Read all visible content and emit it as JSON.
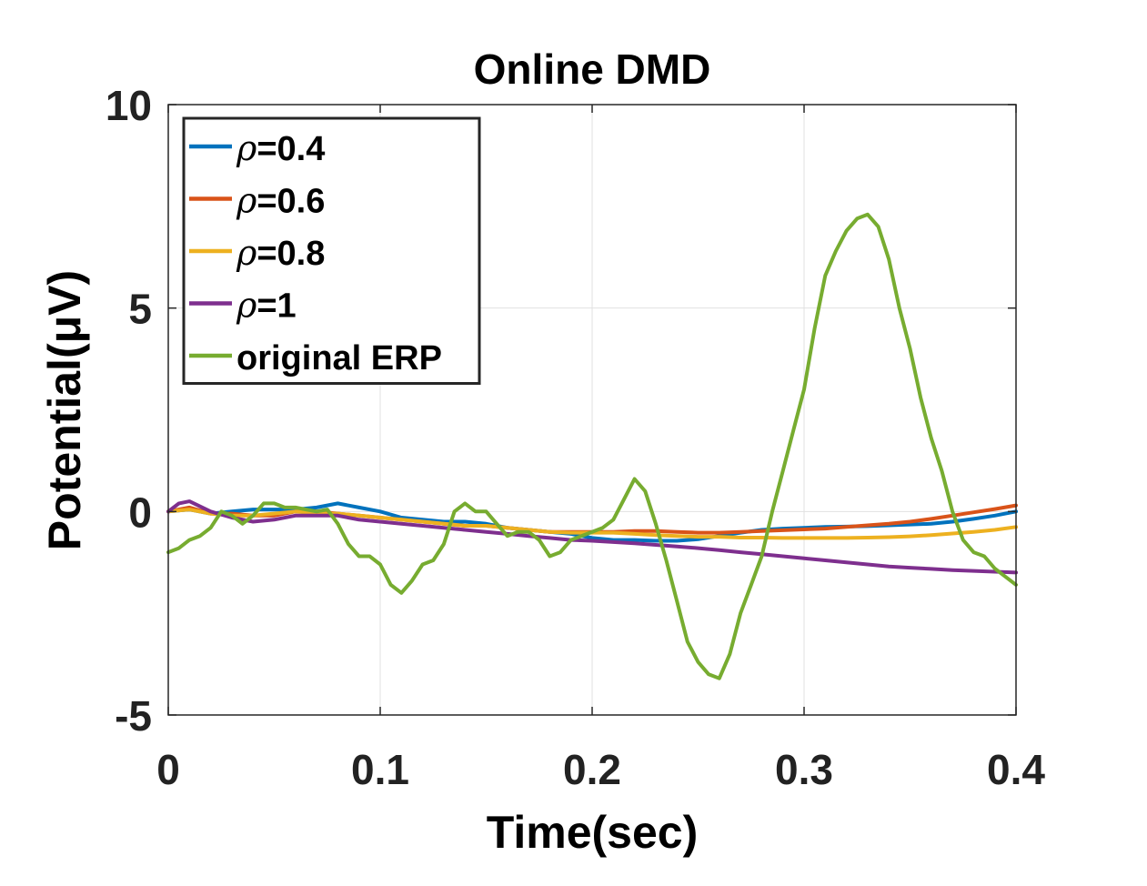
{
  "chart_data": {
    "type": "line",
    "title": "Online DMD",
    "xlabel": "Time(sec)",
    "ylabel": "Potential(μV)",
    "xlim": [
      0,
      0.4
    ],
    "ylim": [
      -5,
      10
    ],
    "xticks": [
      0,
      0.1,
      0.2,
      0.3,
      0.4
    ],
    "xtick_labels": [
      "0",
      "0.1",
      "0.2",
      "0.3",
      "0.4"
    ],
    "yticks": [
      -5,
      0,
      5,
      10
    ],
    "ytick_labels": [
      "-5",
      "0",
      "5",
      "10"
    ],
    "grid": true,
    "legend_position": "top-left",
    "series": [
      {
        "name": "ρ=0.4",
        "symbol": "ρ",
        "suffix": "=0.4",
        "color": "#0072BD",
        "x": [
          0,
          0.01,
          0.02,
          0.03,
          0.04,
          0.05,
          0.06,
          0.07,
          0.08,
          0.09,
          0.1,
          0.11,
          0.12,
          0.13,
          0.14,
          0.15,
          0.16,
          0.17,
          0.18,
          0.19,
          0.2,
          0.21,
          0.22,
          0.23,
          0.24,
          0.25,
          0.26,
          0.27,
          0.28,
          0.29,
          0.3,
          0.31,
          0.32,
          0.33,
          0.34,
          0.35,
          0.36,
          0.37,
          0.38,
          0.39,
          0.4
        ],
        "y": [
          0.0,
          0.05,
          -0.05,
          0.0,
          0.05,
          0.05,
          0.05,
          0.1,
          0.2,
          0.1,
          0.0,
          -0.15,
          -0.2,
          -0.25,
          -0.25,
          -0.3,
          -0.4,
          -0.45,
          -0.5,
          -0.55,
          -0.65,
          -0.7,
          -0.7,
          -0.72,
          -0.72,
          -0.68,
          -0.6,
          -0.52,
          -0.45,
          -0.42,
          -0.4,
          -0.38,
          -0.37,
          -0.36,
          -0.34,
          -0.32,
          -0.3,
          -0.25,
          -0.18,
          -0.1,
          0.0
        ]
      },
      {
        "name": "ρ=0.6",
        "symbol": "ρ",
        "suffix": "=0.6",
        "color": "#D95319",
        "x": [
          0,
          0.01,
          0.02,
          0.03,
          0.04,
          0.05,
          0.06,
          0.07,
          0.08,
          0.09,
          0.1,
          0.11,
          0.12,
          0.13,
          0.14,
          0.15,
          0.16,
          0.17,
          0.18,
          0.19,
          0.2,
          0.21,
          0.22,
          0.23,
          0.24,
          0.25,
          0.26,
          0.27,
          0.28,
          0.29,
          0.3,
          0.31,
          0.32,
          0.33,
          0.34,
          0.35,
          0.36,
          0.37,
          0.38,
          0.39,
          0.4
        ],
        "y": [
          0.0,
          0.1,
          -0.05,
          -0.05,
          -0.1,
          -0.1,
          0.0,
          0.0,
          -0.05,
          -0.1,
          -0.15,
          -0.2,
          -0.25,
          -0.3,
          -0.35,
          -0.35,
          -0.4,
          -0.45,
          -0.5,
          -0.5,
          -0.5,
          -0.5,
          -0.48,
          -0.48,
          -0.5,
          -0.52,
          -0.52,
          -0.5,
          -0.48,
          -0.46,
          -0.44,
          -0.42,
          -0.38,
          -0.34,
          -0.3,
          -0.25,
          -0.18,
          -0.1,
          -0.02,
          0.06,
          0.15
        ]
      },
      {
        "name": "ρ=0.8",
        "symbol": "ρ",
        "suffix": "=0.8",
        "color": "#EDB120",
        "x": [
          0,
          0.01,
          0.02,
          0.03,
          0.04,
          0.05,
          0.06,
          0.07,
          0.08,
          0.09,
          0.1,
          0.11,
          0.12,
          0.13,
          0.14,
          0.15,
          0.16,
          0.17,
          0.18,
          0.19,
          0.2,
          0.21,
          0.22,
          0.23,
          0.24,
          0.25,
          0.26,
          0.27,
          0.28,
          0.29,
          0.3,
          0.31,
          0.32,
          0.33,
          0.34,
          0.35,
          0.36,
          0.37,
          0.38,
          0.39,
          0.4
        ],
        "y": [
          0.0,
          0.05,
          -0.05,
          -0.1,
          -0.1,
          -0.05,
          0.0,
          -0.05,
          -0.05,
          -0.1,
          -0.15,
          -0.2,
          -0.25,
          -0.3,
          -0.35,
          -0.35,
          -0.4,
          -0.45,
          -0.5,
          -0.52,
          -0.52,
          -0.52,
          -0.55,
          -0.58,
          -0.6,
          -0.62,
          -0.62,
          -0.64,
          -0.64,
          -0.65,
          -0.65,
          -0.65,
          -0.65,
          -0.64,
          -0.63,
          -0.61,
          -0.58,
          -0.54,
          -0.5,
          -0.45,
          -0.38
        ]
      },
      {
        "name": "ρ=1",
        "symbol": "ρ",
        "suffix": "=1",
        "color": "#7E2F8E",
        "x": [
          0,
          0.005,
          0.01,
          0.02,
          0.03,
          0.04,
          0.05,
          0.06,
          0.07,
          0.08,
          0.09,
          0.1,
          0.11,
          0.12,
          0.13,
          0.14,
          0.15,
          0.16,
          0.17,
          0.18,
          0.19,
          0.2,
          0.21,
          0.22,
          0.23,
          0.24,
          0.25,
          0.26,
          0.27,
          0.28,
          0.29,
          0.3,
          0.31,
          0.32,
          0.33,
          0.34,
          0.35,
          0.36,
          0.37,
          0.38,
          0.39,
          0.4
        ],
        "y": [
          0.0,
          0.2,
          0.25,
          0.0,
          -0.15,
          -0.25,
          -0.2,
          -0.1,
          -0.1,
          -0.1,
          -0.2,
          -0.25,
          -0.3,
          -0.35,
          -0.4,
          -0.45,
          -0.5,
          -0.55,
          -0.6,
          -0.65,
          -0.7,
          -0.72,
          -0.75,
          -0.78,
          -0.82,
          -0.86,
          -0.9,
          -0.95,
          -1.0,
          -1.05,
          -1.1,
          -1.15,
          -1.2,
          -1.25,
          -1.3,
          -1.35,
          -1.38,
          -1.41,
          -1.44,
          -1.46,
          -1.48,
          -1.5
        ]
      },
      {
        "name": "original ERP",
        "symbol": "",
        "suffix": "original ERP",
        "color": "#77AC30",
        "x": [
          0,
          0.005,
          0.01,
          0.015,
          0.02,
          0.025,
          0.03,
          0.035,
          0.04,
          0.045,
          0.05,
          0.055,
          0.06,
          0.065,
          0.07,
          0.075,
          0.08,
          0.085,
          0.09,
          0.095,
          0.1,
          0.105,
          0.11,
          0.115,
          0.12,
          0.125,
          0.13,
          0.135,
          0.14,
          0.145,
          0.15,
          0.155,
          0.16,
          0.165,
          0.17,
          0.175,
          0.18,
          0.185,
          0.19,
          0.195,
          0.2,
          0.205,
          0.21,
          0.215,
          0.22,
          0.225,
          0.23,
          0.235,
          0.24,
          0.245,
          0.25,
          0.255,
          0.26,
          0.265,
          0.27,
          0.275,
          0.28,
          0.285,
          0.29,
          0.295,
          0.3,
          0.305,
          0.31,
          0.315,
          0.32,
          0.325,
          0.33,
          0.335,
          0.34,
          0.345,
          0.35,
          0.355,
          0.36,
          0.365,
          0.37,
          0.375,
          0.38,
          0.385,
          0.39,
          0.395,
          0.4
        ],
        "y": [
          -1.0,
          -0.9,
          -0.7,
          -0.6,
          -0.4,
          0.0,
          -0.1,
          -0.3,
          -0.1,
          0.2,
          0.2,
          0.1,
          0.1,
          0.05,
          0.0,
          0.05,
          -0.3,
          -0.8,
          -1.1,
          -1.1,
          -1.3,
          -1.8,
          -2.0,
          -1.7,
          -1.3,
          -1.2,
          -0.8,
          0.0,
          0.2,
          0.0,
          0.0,
          -0.3,
          -0.6,
          -0.5,
          -0.5,
          -0.7,
          -1.1,
          -1.0,
          -0.7,
          -0.6,
          -0.5,
          -0.4,
          -0.2,
          0.3,
          0.8,
          0.5,
          -0.3,
          -1.2,
          -2.2,
          -3.2,
          -3.7,
          -4.0,
          -4.1,
          -3.5,
          -2.5,
          -1.8,
          -1.1,
          0.0,
          1.0,
          2.0,
          3.0,
          4.5,
          5.8,
          6.4,
          6.9,
          7.2,
          7.3,
          7.0,
          6.2,
          5.0,
          4.0,
          2.8,
          1.8,
          1.0,
          0.0,
          -0.7,
          -1.0,
          -1.1,
          -1.4,
          -1.6,
          -1.8
        ]
      }
    ]
  }
}
